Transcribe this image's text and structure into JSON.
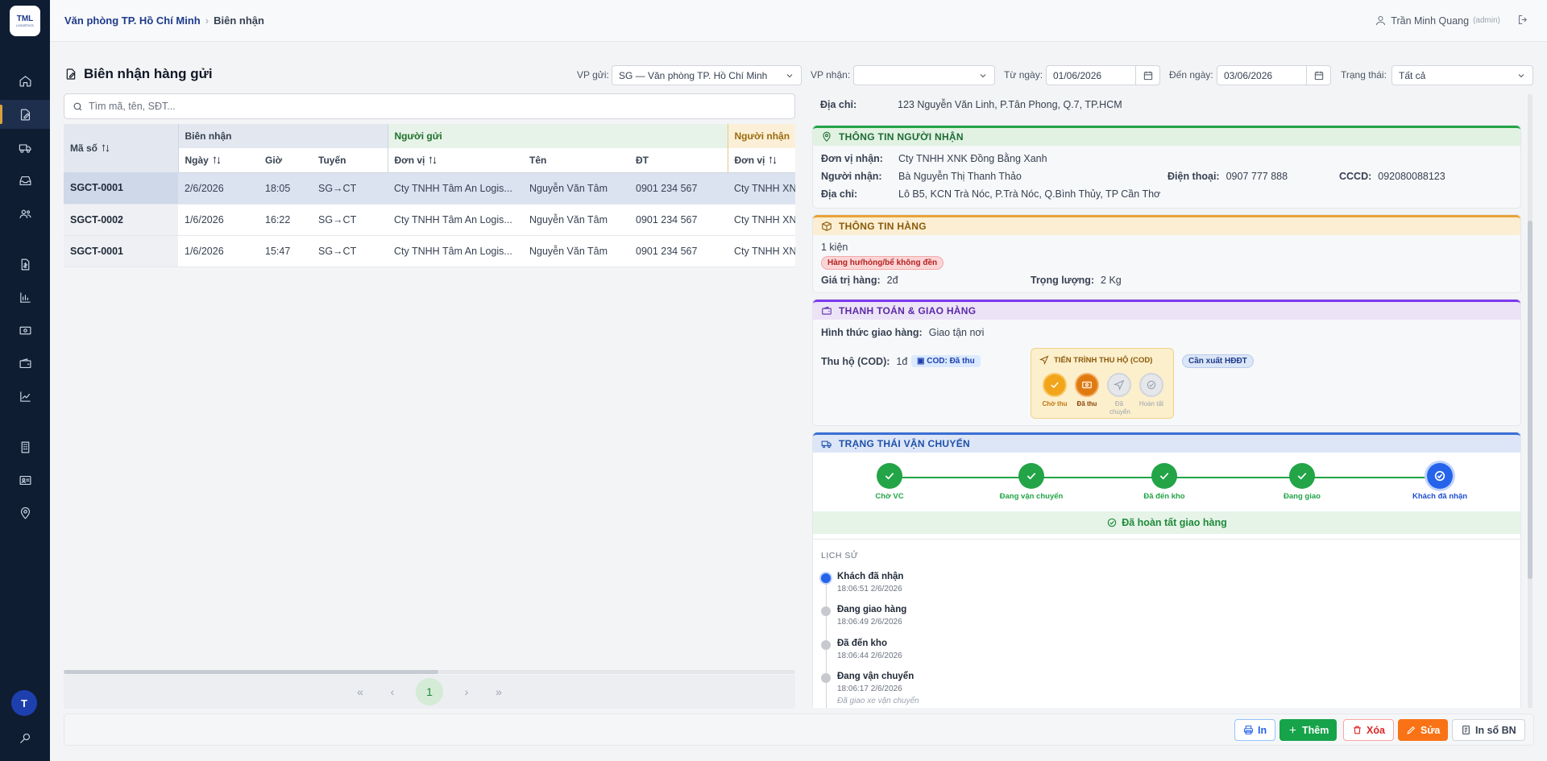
{
  "logo": {
    "text": "TML",
    "sub": "LOGISTICS"
  },
  "breadcrumb": {
    "parent": "Văn phòng TP. Hồ Chí Minh",
    "current": "Biên nhận"
  },
  "user": {
    "name": "Trần Minh Quang",
    "role": "(admin)"
  },
  "page": {
    "title": "Biên nhận hàng gửi"
  },
  "filters": {
    "vp_gui_label": "VP gửi:",
    "vp_gui_value": "SG — Văn phòng TP. Hồ Chí Minh",
    "vp_nhan_label": "VP nhận:",
    "vp_nhan_value": "",
    "tu_ngay_label": "Từ ngày:",
    "tu_ngay_value": "01/06/2026",
    "den_ngay_label": "Đến ngày:",
    "den_ngay_value": "03/06/2026",
    "trang_thai_label": "Trạng thái:",
    "trang_thai_value": "Tất cả"
  },
  "search": {
    "placeholder": "Tìm mã, tên, SĐT..."
  },
  "table": {
    "groups": {
      "ma_so": "Mã số",
      "bien_nhan": "Biên nhận",
      "nguoi_gui": "Người gửi",
      "nguoi_nhan": "Người nhận"
    },
    "cols": {
      "ngay": "Ngày",
      "gio": "Giờ",
      "tuyen": "Tuyến",
      "don_vi": "Đơn vị",
      "ten": "Tên",
      "dt": "ĐT",
      "don_vi2": "Đơn vị"
    },
    "rows": [
      {
        "ma": "SGCT-0001",
        "ngay": "2/6/2026",
        "gio": "18:05",
        "tuyen": "SG→CT",
        "don_vi": "Cty TNHH Tâm An Logis...",
        "ten": "Nguyễn Văn Tâm",
        "dt": "0901 234 567",
        "nn_don_vi": "Cty TNHH XN"
      },
      {
        "ma": "SGCT-0002",
        "ngay": "1/6/2026",
        "gio": "16:22",
        "tuyen": "SG→CT",
        "don_vi": "Cty TNHH Tâm An Logis...",
        "ten": "Nguyễn Văn Tâm",
        "dt": "0901 234 567",
        "nn_don_vi": "Cty TNHH XN"
      },
      {
        "ma": "SGCT-0001",
        "ngay": "1/6/2026",
        "gio": "15:47",
        "tuyen": "SG→CT",
        "don_vi": "Cty TNHH Tâm An Logis...",
        "ten": "Nguyễn Văn Tâm",
        "dt": "0901 234 567",
        "nn_don_vi": "Cty TNHH XN"
      }
    ]
  },
  "pager": {
    "first": "«",
    "prev": "‹",
    "page": "1",
    "next": "›",
    "last": "»"
  },
  "detail": {
    "sender_address_label": "Địa chỉ:",
    "sender_address": "123 Nguyễn Văn Linh, P.Tân Phong, Q.7, TP.HCM",
    "receiver": {
      "title": "THÔNG TIN NGƯỜI NHẬN",
      "don_vi_label": "Đơn vị nhận:",
      "don_vi": "Cty TNHH XNK Đồng Bằng Xanh",
      "nguoi_label": "Người nhận:",
      "nguoi": "Bà Nguyễn Thị Thanh Thảo",
      "phone_label": "Điện thoại:",
      "phone": "0907 777 888",
      "cccd_label": "CCCD:",
      "cccd": "092080088123",
      "address_label": "Địa chỉ:",
      "address": "Lô B5, KCN Trà Nóc, P.Trà Nóc, Q.Bình Thủy, TP Cần Thơ"
    },
    "goods": {
      "title": "THÔNG TIN HÀNG",
      "qty": "1 kiện",
      "tag": "Hàng hư/hỏng/bể không đền",
      "value_label": "Giá trị hàng:",
      "value": "2đ",
      "weight_label": "Trọng lượng:",
      "weight": "2 Kg"
    },
    "payment": {
      "title": "THANH TOÁN & GIAO HÀNG",
      "method_label": "Hình thức giao hàng:",
      "method": "Giao tận nơi",
      "cod_label": "Thu hộ (COD):",
      "cod": "1đ",
      "cod_badge": "COD: Đã thu",
      "cod_progress_title": "TIẾN TRÌNH THU HỘ (COD)",
      "cod_steps": [
        "Chờ thu",
        "Đã thu",
        "Đã chuyển",
        "Hoàn tất"
      ],
      "invoice_badge": "Cần xuất HĐĐT"
    },
    "shipping": {
      "title": "TRẠNG THÁI VẬN CHUYỂN",
      "steps": [
        "Chờ VC",
        "Đang vận chuyển",
        "Đã đến kho",
        "Đang giao",
        "Khách đã nhận"
      ],
      "done": "Đã hoàn tất giao hàng"
    },
    "history": {
      "title": "LỊCH SỬ",
      "items": [
        {
          "title": "Khách đã nhận",
          "time": "18:06:51 2/6/2026",
          "note": ""
        },
        {
          "title": "Đang giao hàng",
          "time": "18:06:49 2/6/2026",
          "note": ""
        },
        {
          "title": "Đã đến kho",
          "time": "18:06:44 2/6/2026",
          "note": ""
        },
        {
          "title": "Đang vận chuyển",
          "time": "18:06:17 2/6/2026",
          "note": "Đã giao xe vận chuyển"
        }
      ]
    }
  },
  "actions": {
    "print": "In",
    "add": "Thêm",
    "delete": "Xóa",
    "edit": "Sửa",
    "print_book": "In sổ BN"
  },
  "colors": {
    "sidebar": "#0f1d33",
    "accent": "#d8a23b",
    "green": "#22a447",
    "orange": "#f97316",
    "red": "#dc2626"
  }
}
